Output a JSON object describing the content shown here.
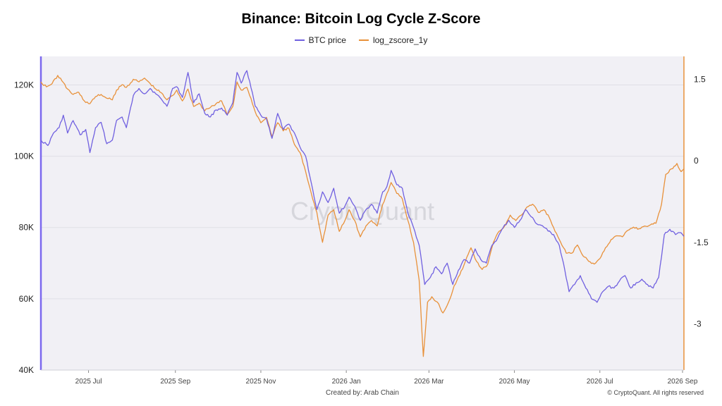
{
  "chart_data": {
    "type": "line",
    "title": "Binance: Bitcoin Log Cycle Z-Score",
    "watermark": "CryptoQuant",
    "created_by": "Created by: Arab Chain",
    "copyright": "© CryptoQuant. All rights reserved",
    "legend_position": "top-center",
    "grid": true,
    "x_range": [
      "2025-05-28",
      "2026-08-30"
    ],
    "x_ticks": [
      {
        "date": "2025-07-01",
        "label": "2025 Jul"
      },
      {
        "date": "2025-09-01",
        "label": "2025 Sep"
      },
      {
        "date": "2025-11-01",
        "label": "2025 Nov"
      },
      {
        "date": "2026-01-01",
        "label": "2026 Jan"
      },
      {
        "date": "2026-03-01",
        "label": "2026 Mar"
      },
      {
        "date": "2026-05-01",
        "label": "2026 May"
      },
      {
        "date": "2026-07-01",
        "label": "2026 Jul"
      },
      {
        "date": "2026-09-01",
        "label": "2026 Sep"
      }
    ],
    "y_left": {
      "range": [
        40000,
        128000
      ],
      "ticks": [
        40000,
        60000,
        80000,
        100000,
        120000
      ],
      "tick_labels": [
        "40K",
        "60K",
        "80K",
        "100K",
        "120K"
      ],
      "color": "#7b68ee"
    },
    "y_right": {
      "range": [
        -3.85,
        1.92
      ],
      "ticks": [
        -3,
        -1.5,
        0,
        1.5
      ],
      "tick_labels": [
        "-3",
        "-1.5",
        "0",
        "1.5"
      ],
      "color": "#e8913a"
    },
    "series": [
      {
        "name": "BTC price",
        "axis": "left",
        "color": "#7060e0",
        "points": [
          [
            "2025-05-28",
            104500
          ],
          [
            "2025-06-02",
            103000
          ],
          [
            "2025-06-06",
            106500
          ],
          [
            "2025-06-10",
            108000
          ],
          [
            "2025-06-13",
            111500
          ],
          [
            "2025-06-16",
            106500
          ],
          [
            "2025-06-20",
            110000
          ],
          [
            "2025-06-25",
            106000
          ],
          [
            "2025-06-29",
            107500
          ],
          [
            "2025-07-02",
            101000
          ],
          [
            "2025-07-06",
            108000
          ],
          [
            "2025-07-10",
            109500
          ],
          [
            "2025-07-14",
            103500
          ],
          [
            "2025-07-18",
            104500
          ],
          [
            "2025-07-21",
            110000
          ],
          [
            "2025-07-25",
            111000
          ],
          [
            "2025-07-28",
            108000
          ],
          [
            "2025-08-02",
            117000
          ],
          [
            "2025-08-06",
            119000
          ],
          [
            "2025-08-10",
            117500
          ],
          [
            "2025-08-14",
            119000
          ],
          [
            "2025-08-18",
            117500
          ],
          [
            "2025-08-22",
            116000
          ],
          [
            "2025-08-26",
            114000
          ],
          [
            "2025-08-30",
            119000
          ],
          [
            "2025-09-02",
            119500
          ],
          [
            "2025-09-06",
            116500
          ],
          [
            "2025-09-10",
            123500
          ],
          [
            "2025-09-14",
            115000
          ],
          [
            "2025-09-18",
            117500
          ],
          [
            "2025-09-22",
            112000
          ],
          [
            "2025-09-26",
            111000
          ],
          [
            "2025-09-30",
            113000
          ],
          [
            "2025-10-04",
            113500
          ],
          [
            "2025-10-08",
            111500
          ],
          [
            "2025-10-12",
            115000
          ],
          [
            "2025-10-15",
            123500
          ],
          [
            "2025-10-18",
            120500
          ],
          [
            "2025-10-22",
            124000
          ],
          [
            "2025-10-24",
            121000
          ],
          [
            "2025-10-28",
            114000
          ],
          [
            "2025-11-01",
            111500
          ],
          [
            "2025-11-05",
            110500
          ],
          [
            "2025-11-09",
            105000
          ],
          [
            "2025-11-13",
            112000
          ],
          [
            "2025-11-17",
            107500
          ],
          [
            "2025-11-21",
            109000
          ],
          [
            "2025-11-25",
            106500
          ],
          [
            "2025-11-29",
            102500
          ],
          [
            "2025-12-03",
            100000
          ],
          [
            "2025-12-07",
            92500
          ],
          [
            "2025-12-11",
            85000
          ],
          [
            "2025-12-15",
            90000
          ],
          [
            "2025-12-19",
            87000
          ],
          [
            "2025-12-23",
            91000
          ],
          [
            "2025-12-27",
            84000
          ],
          [
            "2025-12-31",
            86000
          ],
          [
            "2026-01-03",
            88500
          ],
          [
            "2026-01-07",
            86000
          ],
          [
            "2026-01-11",
            82000
          ],
          [
            "2026-01-15",
            85000
          ],
          [
            "2026-01-19",
            86500
          ],
          [
            "2026-01-23",
            84000
          ],
          [
            "2026-01-27",
            90000
          ],
          [
            "2026-01-30",
            91500
          ],
          [
            "2026-02-02",
            96000
          ],
          [
            "2026-02-06",
            92000
          ],
          [
            "2026-02-10",
            91000
          ],
          [
            "2026-02-14",
            84000
          ],
          [
            "2026-02-18",
            80000
          ],
          [
            "2026-02-22",
            75000
          ],
          [
            "2026-02-26",
            64000
          ],
          [
            "2026-03-02",
            66000
          ],
          [
            "2026-03-06",
            69000
          ],
          [
            "2026-03-10",
            67000
          ],
          [
            "2026-03-14",
            70000
          ],
          [
            "2026-03-18",
            64000
          ],
          [
            "2026-03-22",
            68000
          ],
          [
            "2026-03-26",
            71000
          ],
          [
            "2026-03-30",
            70000
          ],
          [
            "2026-04-03",
            74000
          ],
          [
            "2026-04-07",
            71000
          ],
          [
            "2026-04-11",
            70000
          ],
          [
            "2026-04-15",
            75000
          ],
          [
            "2026-04-19",
            77000
          ],
          [
            "2026-04-23",
            80000
          ],
          [
            "2026-04-27",
            82000
          ],
          [
            "2026-05-01",
            80000
          ],
          [
            "2026-05-05",
            82000
          ],
          [
            "2026-05-09",
            85000
          ],
          [
            "2026-05-13",
            83000
          ],
          [
            "2026-05-17",
            81000
          ],
          [
            "2026-05-21",
            80500
          ],
          [
            "2026-05-25",
            79000
          ],
          [
            "2026-05-29",
            78000
          ],
          [
            "2026-06-02",
            75000
          ],
          [
            "2026-06-06",
            68000
          ],
          [
            "2026-06-09",
            62000
          ],
          [
            "2026-06-13",
            64000
          ],
          [
            "2026-06-17",
            66500
          ],
          [
            "2026-06-21",
            63000
          ],
          [
            "2026-06-25",
            60000
          ],
          [
            "2026-06-29",
            59000
          ],
          [
            "2026-07-03",
            62000
          ],
          [
            "2026-07-07",
            63500
          ],
          [
            "2026-07-11",
            63000
          ],
          [
            "2026-07-15",
            65000
          ],
          [
            "2026-07-19",
            66500
          ],
          [
            "2026-07-23",
            63000
          ],
          [
            "2026-07-27",
            64500
          ],
          [
            "2026-07-31",
            65500
          ],
          [
            "2026-08-04",
            64000
          ],
          [
            "2026-08-08",
            63000
          ],
          [
            "2026-08-12",
            66000
          ],
          [
            "2026-08-16",
            78000
          ],
          [
            "2026-08-20",
            79500
          ],
          [
            "2026-08-24",
            78000
          ],
          [
            "2026-08-28",
            78500
          ],
          [
            "2026-08-30",
            77500
          ]
        ]
      },
      {
        "name": "log_zscore_1y",
        "axis": "right",
        "color": "#e8913a",
        "points": [
          [
            "2025-05-28",
            1.45
          ],
          [
            "2025-06-01",
            1.36
          ],
          [
            "2025-06-05",
            1.42
          ],
          [
            "2025-06-09",
            1.57
          ],
          [
            "2025-06-12",
            1.47
          ],
          [
            "2025-06-16",
            1.32
          ],
          [
            "2025-06-20",
            1.22
          ],
          [
            "2025-06-24",
            1.26
          ],
          [
            "2025-06-28",
            1.1
          ],
          [
            "2025-07-02",
            1.05
          ],
          [
            "2025-07-06",
            1.18
          ],
          [
            "2025-07-10",
            1.22
          ],
          [
            "2025-07-14",
            1.15
          ],
          [
            "2025-07-18",
            1.12
          ],
          [
            "2025-07-21",
            1.3
          ],
          [
            "2025-07-25",
            1.4
          ],
          [
            "2025-07-28",
            1.35
          ],
          [
            "2025-08-02",
            1.5
          ],
          [
            "2025-08-06",
            1.45
          ],
          [
            "2025-08-10",
            1.52
          ],
          [
            "2025-08-14",
            1.42
          ],
          [
            "2025-08-18",
            1.32
          ],
          [
            "2025-08-22",
            1.25
          ],
          [
            "2025-08-26",
            1.12
          ],
          [
            "2025-08-30",
            1.2
          ],
          [
            "2025-09-02",
            1.3
          ],
          [
            "2025-09-06",
            1.1
          ],
          [
            "2025-09-10",
            1.32
          ],
          [
            "2025-09-14",
            1.0
          ],
          [
            "2025-09-18",
            1.06
          ],
          [
            "2025-09-22",
            0.92
          ],
          [
            "2025-09-26",
            0.98
          ],
          [
            "2025-09-30",
            1.05
          ],
          [
            "2025-10-04",
            1.1
          ],
          [
            "2025-10-08",
            0.85
          ],
          [
            "2025-10-12",
            1.0
          ],
          [
            "2025-10-15",
            1.45
          ],
          [
            "2025-10-18",
            1.3
          ],
          [
            "2025-10-22",
            1.35
          ],
          [
            "2025-10-24",
            1.2
          ],
          [
            "2025-10-28",
            0.9
          ],
          [
            "2025-11-01",
            0.7
          ],
          [
            "2025-11-05",
            0.8
          ],
          [
            "2025-11-09",
            0.45
          ],
          [
            "2025-11-13",
            0.7
          ],
          [
            "2025-11-17",
            0.55
          ],
          [
            "2025-11-21",
            0.6
          ],
          [
            "2025-11-25",
            0.3
          ],
          [
            "2025-11-29",
            0.15
          ],
          [
            "2025-12-03",
            -0.2
          ],
          [
            "2025-12-07",
            -0.6
          ],
          [
            "2025-12-11",
            -0.95
          ],
          [
            "2025-12-15",
            -1.5
          ],
          [
            "2025-12-19",
            -1.0
          ],
          [
            "2025-12-23",
            -0.9
          ],
          [
            "2025-12-27",
            -1.3
          ],
          [
            "2025-12-31",
            -1.1
          ],
          [
            "2026-01-03",
            -0.9
          ],
          [
            "2026-01-07",
            -1.1
          ],
          [
            "2026-01-11",
            -1.4
          ],
          [
            "2026-01-15",
            -1.2
          ],
          [
            "2026-01-19",
            -1.1
          ],
          [
            "2026-01-23",
            -1.2
          ],
          [
            "2026-01-27",
            -0.8
          ],
          [
            "2026-01-30",
            -0.6
          ],
          [
            "2026-02-02",
            -0.4
          ],
          [
            "2026-02-06",
            -0.6
          ],
          [
            "2026-02-10",
            -0.7
          ],
          [
            "2026-02-14",
            -1.1
          ],
          [
            "2026-02-18",
            -1.5
          ],
          [
            "2026-02-22",
            -2.2
          ],
          [
            "2026-02-25",
            -3.6
          ],
          [
            "2026-02-28",
            -2.6
          ],
          [
            "2026-03-03",
            -2.5
          ],
          [
            "2026-03-07",
            -2.6
          ],
          [
            "2026-03-11",
            -2.8
          ],
          [
            "2026-03-15",
            -2.6
          ],
          [
            "2026-03-19",
            -2.3
          ],
          [
            "2026-03-23",
            -2.1
          ],
          [
            "2026-03-27",
            -1.85
          ],
          [
            "2026-03-31",
            -1.6
          ],
          [
            "2026-04-04",
            -1.85
          ],
          [
            "2026-04-08",
            -2.0
          ],
          [
            "2026-04-12",
            -1.9
          ],
          [
            "2026-04-16",
            -1.5
          ],
          [
            "2026-04-20",
            -1.3
          ],
          [
            "2026-04-24",
            -1.2
          ],
          [
            "2026-04-28",
            -1.0
          ],
          [
            "2026-05-02",
            -1.1
          ],
          [
            "2026-05-06",
            -1.0
          ],
          [
            "2026-05-10",
            -0.85
          ],
          [
            "2026-05-14",
            -0.8
          ],
          [
            "2026-05-18",
            -0.95
          ],
          [
            "2026-05-22",
            -0.9
          ],
          [
            "2026-05-26",
            -1.05
          ],
          [
            "2026-05-30",
            -1.3
          ],
          [
            "2026-06-03",
            -1.5
          ],
          [
            "2026-06-07",
            -1.7
          ],
          [
            "2026-06-11",
            -1.7
          ],
          [
            "2026-06-15",
            -1.55
          ],
          [
            "2026-06-19",
            -1.75
          ],
          [
            "2026-06-23",
            -1.85
          ],
          [
            "2026-06-27",
            -1.9
          ],
          [
            "2026-07-01",
            -1.8
          ],
          [
            "2026-07-05",
            -1.6
          ],
          [
            "2026-07-09",
            -1.45
          ],
          [
            "2026-07-13",
            -1.38
          ],
          [
            "2026-07-17",
            -1.4
          ],
          [
            "2026-07-21",
            -1.28
          ],
          [
            "2026-07-25",
            -1.22
          ],
          [
            "2026-07-29",
            -1.25
          ],
          [
            "2026-08-02",
            -1.2
          ],
          [
            "2026-08-06",
            -1.18
          ],
          [
            "2026-08-10",
            -1.15
          ],
          [
            "2026-08-14",
            -0.8
          ],
          [
            "2026-08-17",
            -0.25
          ],
          [
            "2026-08-21",
            -0.15
          ],
          [
            "2026-08-25",
            -0.05
          ],
          [
            "2026-08-28",
            -0.2
          ],
          [
            "2026-08-30",
            -0.15
          ]
        ]
      }
    ]
  }
}
